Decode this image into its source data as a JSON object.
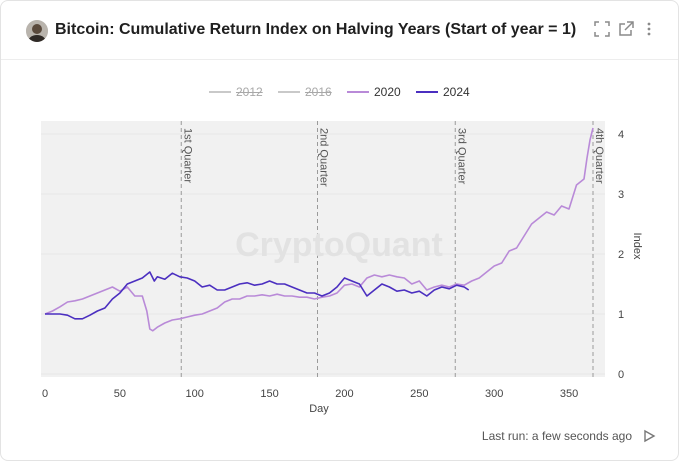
{
  "header": {
    "title": "Bitcoin: Cumulative Return Index on Halving Years (Start of year = 1)",
    "icons": [
      "expand-icon",
      "open-external-icon",
      "more-vert-icon"
    ]
  },
  "legend": [
    {
      "label": "2012",
      "color": "#c9c9c9",
      "hidden": true
    },
    {
      "label": "2016",
      "color": "#c9c9c9",
      "hidden": true
    },
    {
      "label": "2020",
      "color": "#b98ad8",
      "hidden": false
    },
    {
      "label": "2024",
      "color": "#4b2fc0",
      "hidden": false
    }
  ],
  "watermark": "CryptoQuant",
  "footer": {
    "last_run": "Last run: a few seconds ago"
  },
  "chart_data": {
    "type": "line",
    "title": "Bitcoin: Cumulative Return Index on Halving Years (Start of year = 1)",
    "xlabel": "Day",
    "ylabel": "Index",
    "xlim": [
      0,
      372
    ],
    "ylim": [
      0,
      4.2
    ],
    "x_ticks": [
      0,
      50,
      100,
      150,
      200,
      250,
      300,
      350
    ],
    "y_ticks": [
      0,
      1,
      2,
      3,
      4
    ],
    "y_axis_side": "right",
    "quarter_markers": [
      {
        "label": "1st Quarter",
        "x": 91
      },
      {
        "label": "2nd Quarter",
        "x": 182
      },
      {
        "label": "3rd Quarter",
        "x": 274
      },
      {
        "label": "4th Quarter",
        "x": 366
      }
    ],
    "series": [
      {
        "name": "2020",
        "color": "#b98ad8",
        "x": [
          0,
          5,
          10,
          15,
          20,
          25,
          30,
          35,
          40,
          45,
          50,
          55,
          60,
          65,
          68,
          70,
          72,
          75,
          80,
          85,
          90,
          95,
          100,
          105,
          110,
          115,
          120,
          125,
          130,
          135,
          140,
          145,
          150,
          155,
          160,
          165,
          170,
          175,
          180,
          185,
          190,
          195,
          200,
          205,
          210,
          215,
          220,
          225,
          230,
          235,
          240,
          245,
          250,
          255,
          260,
          265,
          270,
          275,
          280,
          285,
          290,
          295,
          300,
          305,
          310,
          315,
          320,
          325,
          330,
          335,
          340,
          345,
          350,
          355,
          360,
          362,
          364,
          366
        ],
        "y": [
          1.0,
          1.05,
          1.12,
          1.2,
          1.22,
          1.25,
          1.3,
          1.35,
          1.4,
          1.45,
          1.38,
          1.45,
          1.3,
          1.3,
          1.05,
          0.75,
          0.72,
          0.78,
          0.85,
          0.9,
          0.92,
          0.95,
          0.98,
          1.0,
          1.05,
          1.1,
          1.2,
          1.25,
          1.25,
          1.3,
          1.3,
          1.32,
          1.3,
          1.33,
          1.3,
          1.3,
          1.28,
          1.28,
          1.25,
          1.28,
          1.3,
          1.35,
          1.48,
          1.5,
          1.45,
          1.6,
          1.65,
          1.62,
          1.65,
          1.62,
          1.6,
          1.5,
          1.55,
          1.4,
          1.45,
          1.48,
          1.45,
          1.5,
          1.48,
          1.55,
          1.6,
          1.7,
          1.8,
          1.85,
          2.05,
          2.1,
          2.3,
          2.5,
          2.6,
          2.7,
          2.65,
          2.8,
          2.75,
          3.15,
          3.25,
          3.6,
          3.9,
          4.1
        ]
      },
      {
        "name": "2024",
        "color": "#4b2fc0",
        "x": [
          0,
          5,
          10,
          15,
          20,
          25,
          30,
          35,
          40,
          45,
          50,
          55,
          60,
          65,
          70,
          73,
          75,
          80,
          85,
          90,
          95,
          100,
          105,
          110,
          115,
          120,
          125,
          130,
          135,
          140,
          145,
          150,
          155,
          160,
          165,
          170,
          175,
          180,
          185,
          190,
          195,
          200,
          205,
          210,
          215,
          220,
          225,
          230,
          235,
          240,
          245,
          250,
          255,
          260,
          265,
          270,
          275,
          280,
          283
        ],
        "y": [
          1.0,
          1.0,
          1.0,
          0.98,
          0.92,
          0.92,
          0.98,
          1.05,
          1.1,
          1.25,
          1.35,
          1.5,
          1.55,
          1.6,
          1.7,
          1.55,
          1.62,
          1.58,
          1.68,
          1.62,
          1.6,
          1.55,
          1.45,
          1.48,
          1.4,
          1.4,
          1.45,
          1.5,
          1.52,
          1.48,
          1.5,
          1.55,
          1.5,
          1.5,
          1.45,
          1.4,
          1.35,
          1.35,
          1.3,
          1.35,
          1.45,
          1.6,
          1.55,
          1.5,
          1.3,
          1.4,
          1.5,
          1.45,
          1.38,
          1.4,
          1.35,
          1.38,
          1.3,
          1.4,
          1.45,
          1.42,
          1.48,
          1.45,
          1.4
        ]
      }
    ]
  }
}
